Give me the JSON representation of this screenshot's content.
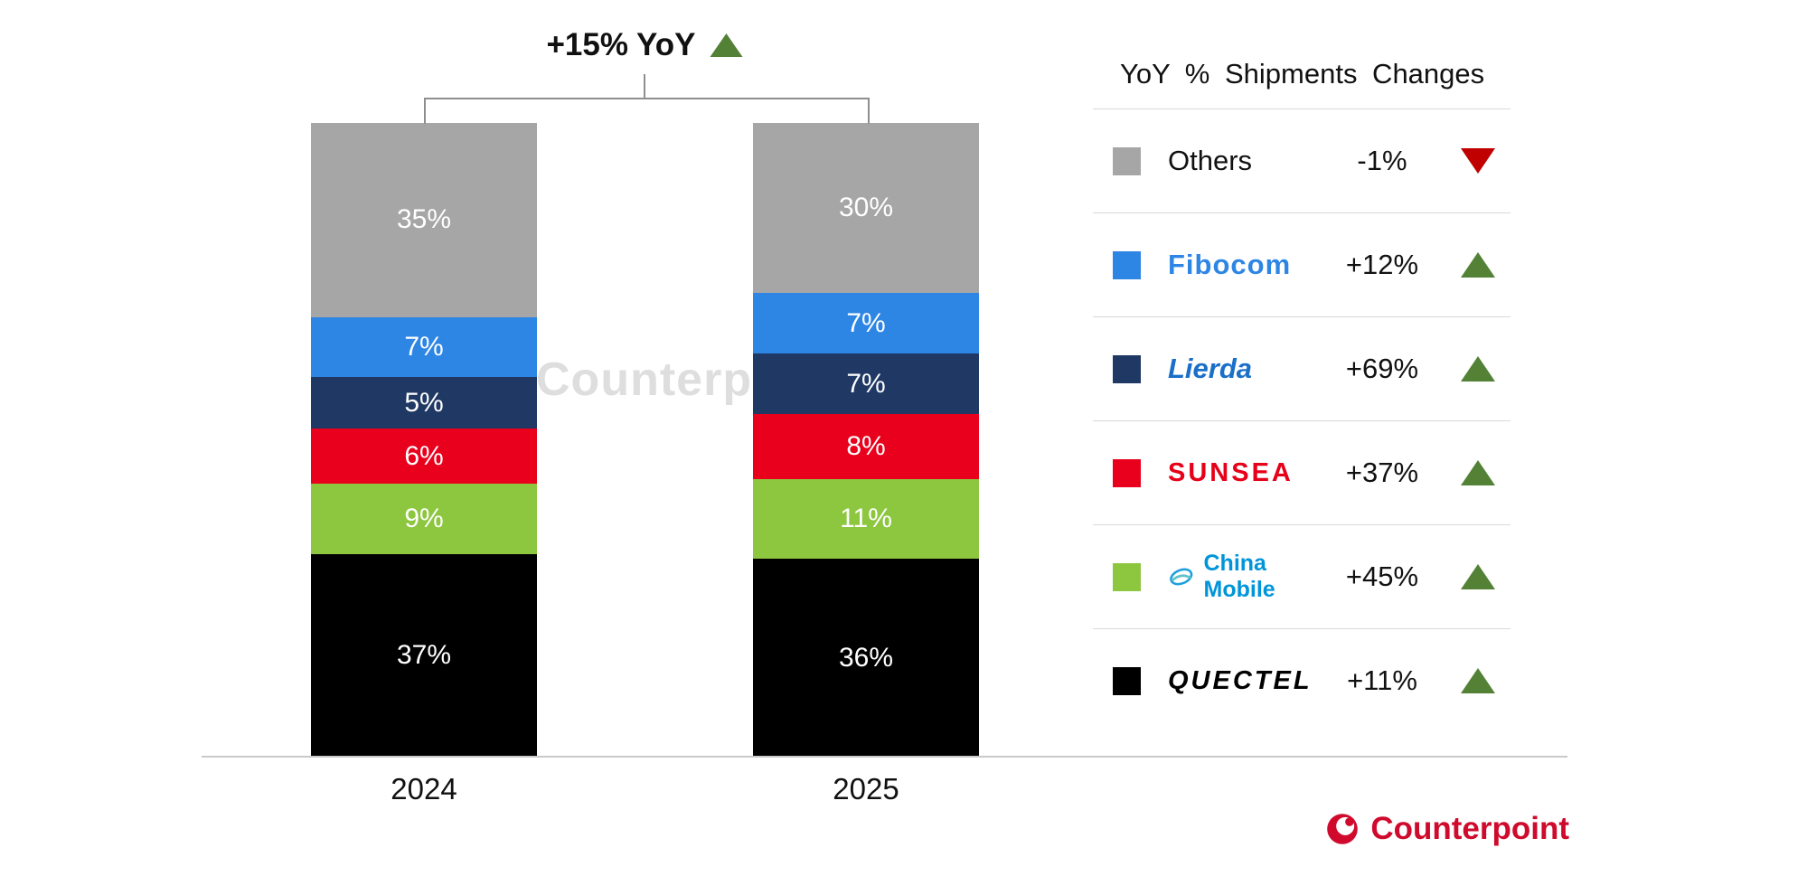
{
  "watermark": "Counterpoint",
  "chart_data": {
    "type": "bar",
    "stacked": true,
    "categories": [
      "2024",
      "2025"
    ],
    "unit": "%",
    "value_label_color": "#ffffff",
    "total_annotation": {
      "label": "+15% YoY",
      "direction": "up"
    },
    "series_order": "top-to-bottom",
    "series": [
      {
        "name": "Others",
        "color": "#a6a6a6",
        "values": [
          35,
          30
        ]
      },
      {
        "name": "Fibocom",
        "color": "#2e86e4",
        "values": [
          7,
          7
        ]
      },
      {
        "name": "Lierda",
        "color": "#1f3864",
        "values": [
          5,
          7
        ]
      },
      {
        "name": "Sunsea",
        "color": "#e8001c",
        "values": [
          6,
          8
        ]
      },
      {
        "name": "China Mobile",
        "color": "#8dc63f",
        "values": [
          9,
          11
        ]
      },
      {
        "name": "Quectel",
        "color": "#000000",
        "values": [
          37,
          36
        ]
      }
    ],
    "ylim": [
      0,
      99
    ]
  },
  "legend": {
    "title": "YoY % Shipments Changes",
    "rows": [
      {
        "name": "Others",
        "swatch_color": "#a6a6a6",
        "logo_text": "Others",
        "logo_style": "others",
        "change": "-1%",
        "direction": "down"
      },
      {
        "name": "Fibocom",
        "swatch_color": "#2e86e4",
        "logo_text": "Fibocom",
        "logo_style": "fibocom",
        "change": "+12%",
        "direction": "up"
      },
      {
        "name": "Lierda",
        "swatch_color": "#1f3864",
        "logo_text": "Lierda",
        "logo_style": "lierda",
        "change": "+69%",
        "direction": "up"
      },
      {
        "name": "Sunsea",
        "swatch_color": "#e8001c",
        "logo_text": "SUNSEA",
        "logo_style": "sunsea",
        "change": "+37%",
        "direction": "up"
      },
      {
        "name": "China Mobile",
        "swatch_color": "#8dc63f",
        "logo_text": "China Mobile",
        "logo_style": "china-mobile",
        "change": "+45%",
        "direction": "up"
      },
      {
        "name": "Quectel",
        "swatch_color": "#000000",
        "logo_text": "QUECTEL",
        "logo_style": "quectel",
        "change": "+11%",
        "direction": "up"
      }
    ]
  },
  "footer": {
    "brand": "Counterpoint"
  },
  "colors": {
    "up_triangle": "#538135",
    "down_triangle": "#c00000",
    "brand_red": "#cf0a2c",
    "baseline": "#c9c9c9",
    "watermark": "#c9c9c9"
  }
}
